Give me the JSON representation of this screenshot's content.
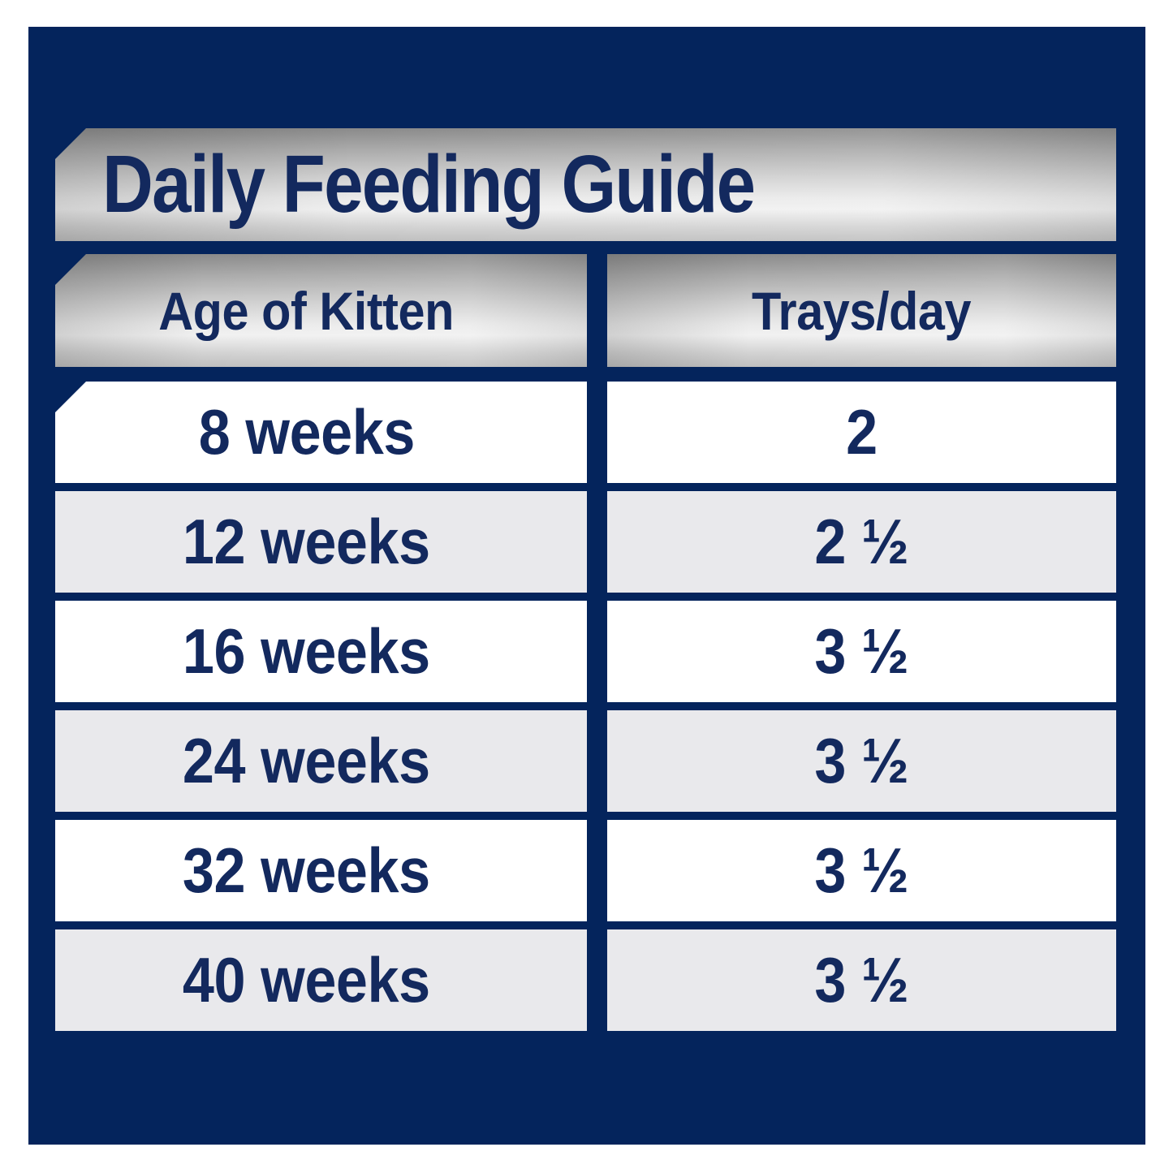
{
  "title": "Daily Feeding Guide",
  "table": {
    "columns": [
      {
        "label": "Age of Kitten"
      },
      {
        "label": "Trays/day"
      }
    ],
    "rows": [
      {
        "age": "8 weeks",
        "trays": "2"
      },
      {
        "age": "12 weeks",
        "trays": "2 ½"
      },
      {
        "age": "16 weeks",
        "trays": "3 ½"
      },
      {
        "age": "24 weeks",
        "trays": "3 ½"
      },
      {
        "age": "32 weeks",
        "trays": "3 ½"
      },
      {
        "age": "40 weeks",
        "trays": "3 ½"
      }
    ]
  },
  "chart_data": {
    "type": "table",
    "title": "Daily Feeding Guide",
    "columns": [
      "Age of Kitten",
      "Trays/day"
    ],
    "rows": [
      [
        "8 weeks",
        "2"
      ],
      [
        "12 weeks",
        "2 ½"
      ],
      [
        "16 weeks",
        "3 ½"
      ],
      [
        "24 weeks",
        "3 ½"
      ],
      [
        "32 weeks",
        "3 ½"
      ],
      [
        "40 weeks",
        "3 ½"
      ]
    ],
    "trays_per_day_numeric": [
      2,
      2.5,
      3.5,
      3.5,
      3.5,
      3.5
    ]
  },
  "colors": {
    "background_navy": "#04245c",
    "text_navy": "#13295e",
    "row_white": "#ffffff",
    "row_gray": "#e9e9ec",
    "silver_dark": "#8a8a8a",
    "silver_light": "#f1f1f1",
    "page_margin": "#ffffff"
  }
}
